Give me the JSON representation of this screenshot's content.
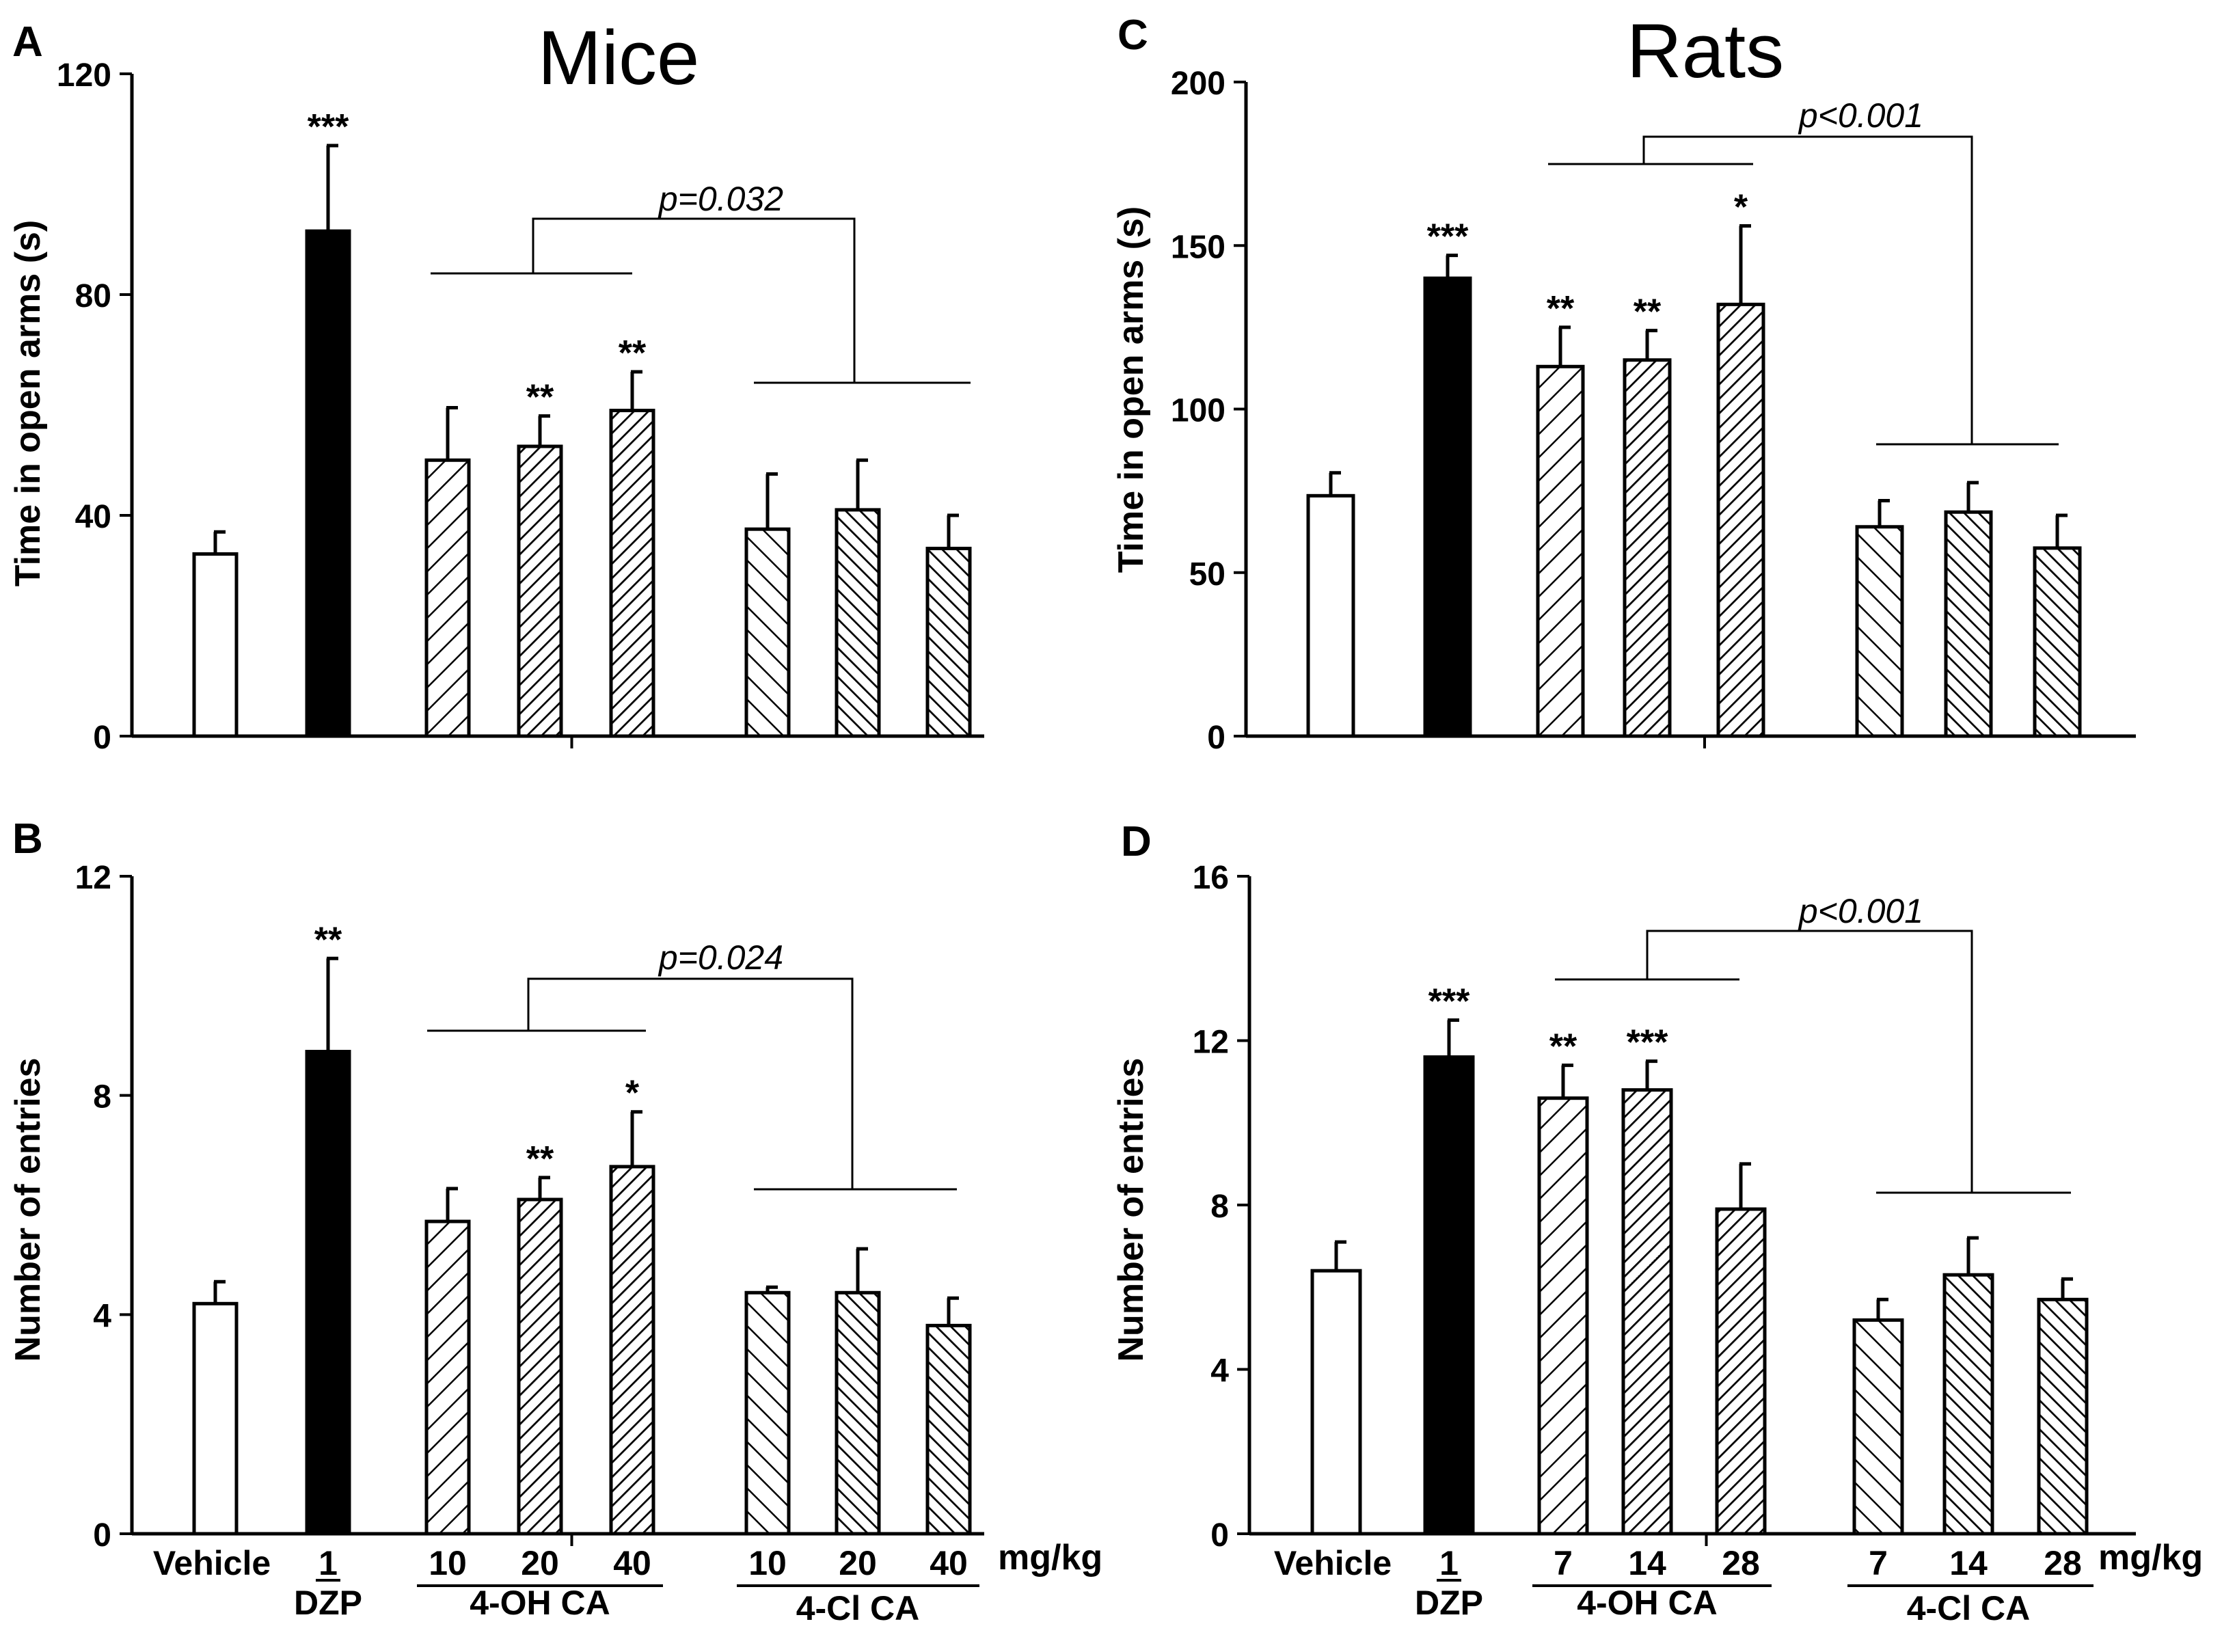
{
  "figure": {
    "mice_title": "Mice",
    "rats_title": "Rats",
    "dose_unit": "mg/kg"
  },
  "colors": {
    "ink": "#000000",
    "background": "#ffffff"
  },
  "chart_data": [
    {
      "type": "bar",
      "panel": "A",
      "title": "Mice",
      "xlabel": "",
      "ylabel": "Time in open arms (s)",
      "ylim": [
        0,
        120
      ],
      "yticks": [
        "0",
        "40",
        "80",
        "120"
      ],
      "categories": [
        "Vehicle",
        "DZP 1",
        "4-OH CA 10",
        "4-OH CA 20",
        "4-OH CA 40",
        "4-Cl CA 10",
        "4-Cl CA 20",
        "4-Cl CA 40"
      ],
      "values": [
        33,
        91.5,
        50,
        52.5,
        59,
        37.5,
        41,
        34
      ],
      "errors": [
        4,
        15.5,
        9.5,
        5.5,
        7,
        10,
        9,
        6
      ],
      "fills": [
        "open",
        "solid",
        "hatch-forward",
        "hatch-forward-dense",
        "hatch-forward-dense",
        "hatch-back",
        "hatch-back-dense",
        "hatch-back-dense"
      ],
      "stars": [
        "",
        "***",
        "",
        "**",
        "**",
        "",
        "",
        ""
      ],
      "comparison_label": "p=0.032"
    },
    {
      "type": "bar",
      "panel": "B",
      "title": "",
      "xlabel": "",
      "ylabel": "Number of entries",
      "ylim": [
        0,
        12
      ],
      "yticks": [
        "0",
        "4",
        "8",
        "12"
      ],
      "categories": [
        "Vehicle",
        "DZP 1",
        "4-OH CA 10",
        "4-OH CA 20",
        "4-OH CA 40",
        "4-Cl CA 10",
        "4-Cl CA 20",
        "4-Cl CA 40"
      ],
      "values": [
        4.2,
        8.8,
        5.7,
        6.1,
        6.7,
        4.4,
        4.4,
        3.8
      ],
      "errors": [
        0.4,
        1.7,
        0.6,
        0.4,
        1.0,
        0.1,
        0.8,
        0.5
      ],
      "fills": [
        "open",
        "solid",
        "hatch-forward",
        "hatch-forward-dense",
        "hatch-forward-dense",
        "hatch-back",
        "hatch-back-dense",
        "hatch-back-dense"
      ],
      "stars": [
        "",
        "**",
        "",
        "**",
        "*",
        "",
        "",
        ""
      ],
      "comparison_label": "p=0.024",
      "x_labels": {
        "vehicle": "Vehicle",
        "dzp_dose": "1",
        "dzp": "DZP",
        "oh_doses": [
          "10",
          "20",
          "40"
        ],
        "oh_group": "4-OH CA",
        "cl_doses": [
          "10",
          "20",
          "40"
        ],
        "cl_group": "4-Cl CA"
      }
    },
    {
      "type": "bar",
      "panel": "C",
      "title": "Rats",
      "xlabel": "",
      "ylabel": "Time in open arms (s)",
      "ylim": [
        0,
        200
      ],
      "yticks": [
        "0",
        "50",
        "100",
        "150",
        "200"
      ],
      "categories": [
        "Vehicle",
        "DZP 1",
        "4-OH CA 7",
        "4-OH CA 14",
        "4-OH CA 28",
        "4-Cl CA 7",
        "4-Cl CA 14",
        "4-Cl CA 28"
      ],
      "values": [
        73.5,
        140,
        113,
        115,
        132,
        64,
        68.5,
        57.5
      ],
      "errors": [
        7,
        7,
        12,
        9,
        24,
        8,
        9,
        10
      ],
      "fills": [
        "open",
        "solid",
        "hatch-forward",
        "hatch-forward-dense",
        "hatch-forward-dense",
        "hatch-back",
        "hatch-back-dense",
        "hatch-back-dense"
      ],
      "stars": [
        "",
        "***",
        "**",
        "**",
        "*",
        "",
        "",
        ""
      ],
      "comparison_label": "p<0.001"
    },
    {
      "type": "bar",
      "panel": "D",
      "title": "",
      "xlabel": "",
      "ylabel": "Number of entries",
      "ylim": [
        0,
        16
      ],
      "yticks": [
        "0",
        "4",
        "8",
        "12",
        "16"
      ],
      "categories": [
        "Vehicle",
        "DZP 1",
        "4-OH CA 7",
        "4-OH CA 14",
        "4-OH CA 28",
        "4-Cl CA 7",
        "4-Cl CA 14",
        "4-Cl CA 28"
      ],
      "values": [
        6.4,
        11.6,
        10.6,
        10.8,
        7.9,
        5.2,
        6.3,
        5.7
      ],
      "errors": [
        0.7,
        0.9,
        0.8,
        0.7,
        1.1,
        0.5,
        0.9,
        0.5
      ],
      "fills": [
        "open",
        "solid",
        "hatch-forward",
        "hatch-forward-dense",
        "hatch-forward-dense",
        "hatch-back",
        "hatch-back-dense",
        "hatch-back-dense"
      ],
      "stars": [
        "",
        "***",
        "**",
        "***",
        "",
        "",
        "",
        ""
      ],
      "comparison_label": "p<0.001",
      "x_labels": {
        "vehicle": "Vehicle",
        "dzp_dose": "1",
        "dzp": "DZP",
        "oh_doses": [
          "7",
          "14",
          "28"
        ],
        "oh_group": "4-OH CA",
        "cl_doses": [
          "7",
          "14",
          "28"
        ],
        "cl_group": "4-Cl CA"
      }
    }
  ]
}
